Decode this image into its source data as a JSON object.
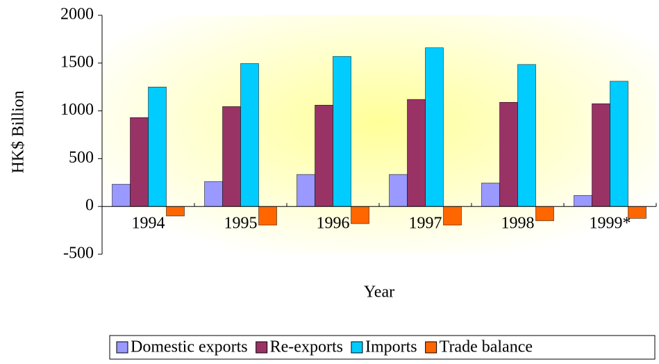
{
  "chart_data": {
    "type": "bar",
    "y_label": "HK$ Billion",
    "x_label": "Year",
    "categories": [
      "1994",
      "1995",
      "1996",
      "1997",
      "1998",
      "1999*"
    ],
    "series": [
      {
        "name": "Domestic exports",
        "color": "#9999ff",
        "values": [
          233,
          260,
          335,
          335,
          245,
          115
        ]
      },
      {
        "name": "Re-exports",
        "color": "#993366",
        "values": [
          930,
          1045,
          1060,
          1120,
          1090,
          1075
        ]
      },
      {
        "name": "Imports",
        "color": "#00ccff",
        "values": [
          1250,
          1495,
          1570,
          1660,
          1485,
          1310
        ]
      },
      {
        "name": "Trade balance",
        "color": "#ff6600",
        "values": [
          -100,
          -195,
          -180,
          -195,
          -150,
          -125
        ]
      }
    ],
    "ylim": [
      -500,
      2000
    ],
    "yticks": [
      -500,
      0,
      500,
      1000,
      1500,
      2000
    ],
    "legend": "bottom"
  }
}
